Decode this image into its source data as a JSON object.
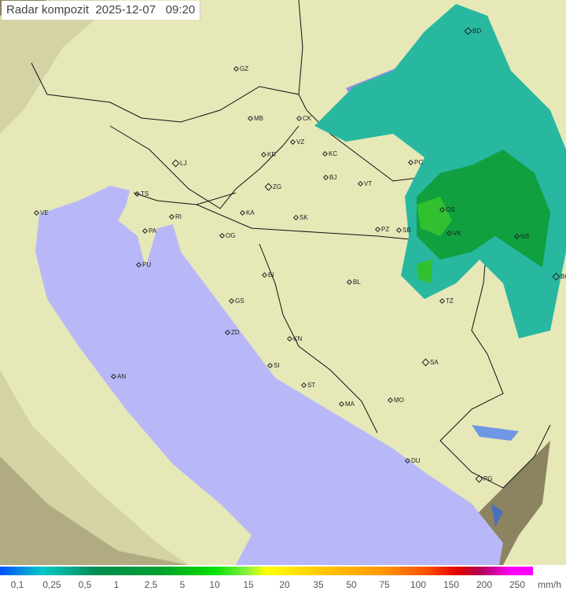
{
  "header": {
    "title": "Radar kompozit",
    "date": "2025-12-07",
    "time": "09:20"
  },
  "map": {
    "colors": {
      "sea": "#b8b8f8",
      "land": "#e8ecbc",
      "outside": "#8c8460",
      "rain_light": "#28b8a0",
      "rain_mid": "#10a040",
      "rain_heavy": "#30c030",
      "rain_edge": "#2060ff"
    },
    "cities": [
      "GZ",
      "MB",
      "CK",
      "VZ",
      "KR",
      "KC",
      "LJ",
      "BJ",
      "VT",
      "ZG",
      "TS",
      "VE",
      "KA",
      "SK",
      "RI",
      "PA",
      "OG",
      "PZ",
      "SB",
      "OS",
      "VK",
      "NS",
      "PU",
      "BI",
      "BL",
      "BG",
      "TZ",
      "GS",
      "ZD",
      "KN",
      "SA",
      "SI",
      "AN",
      "ST",
      "MA",
      "MO",
      "DU",
      "PG",
      "BD",
      "PC"
    ]
  },
  "legend": {
    "unit": "mm/h",
    "values": [
      "0,1",
      "0,25",
      "0,5",
      "1",
      "2,5",
      "5",
      "10",
      "15",
      "20",
      "35",
      "50",
      "75",
      "100",
      "150",
      "200",
      "250"
    ]
  }
}
